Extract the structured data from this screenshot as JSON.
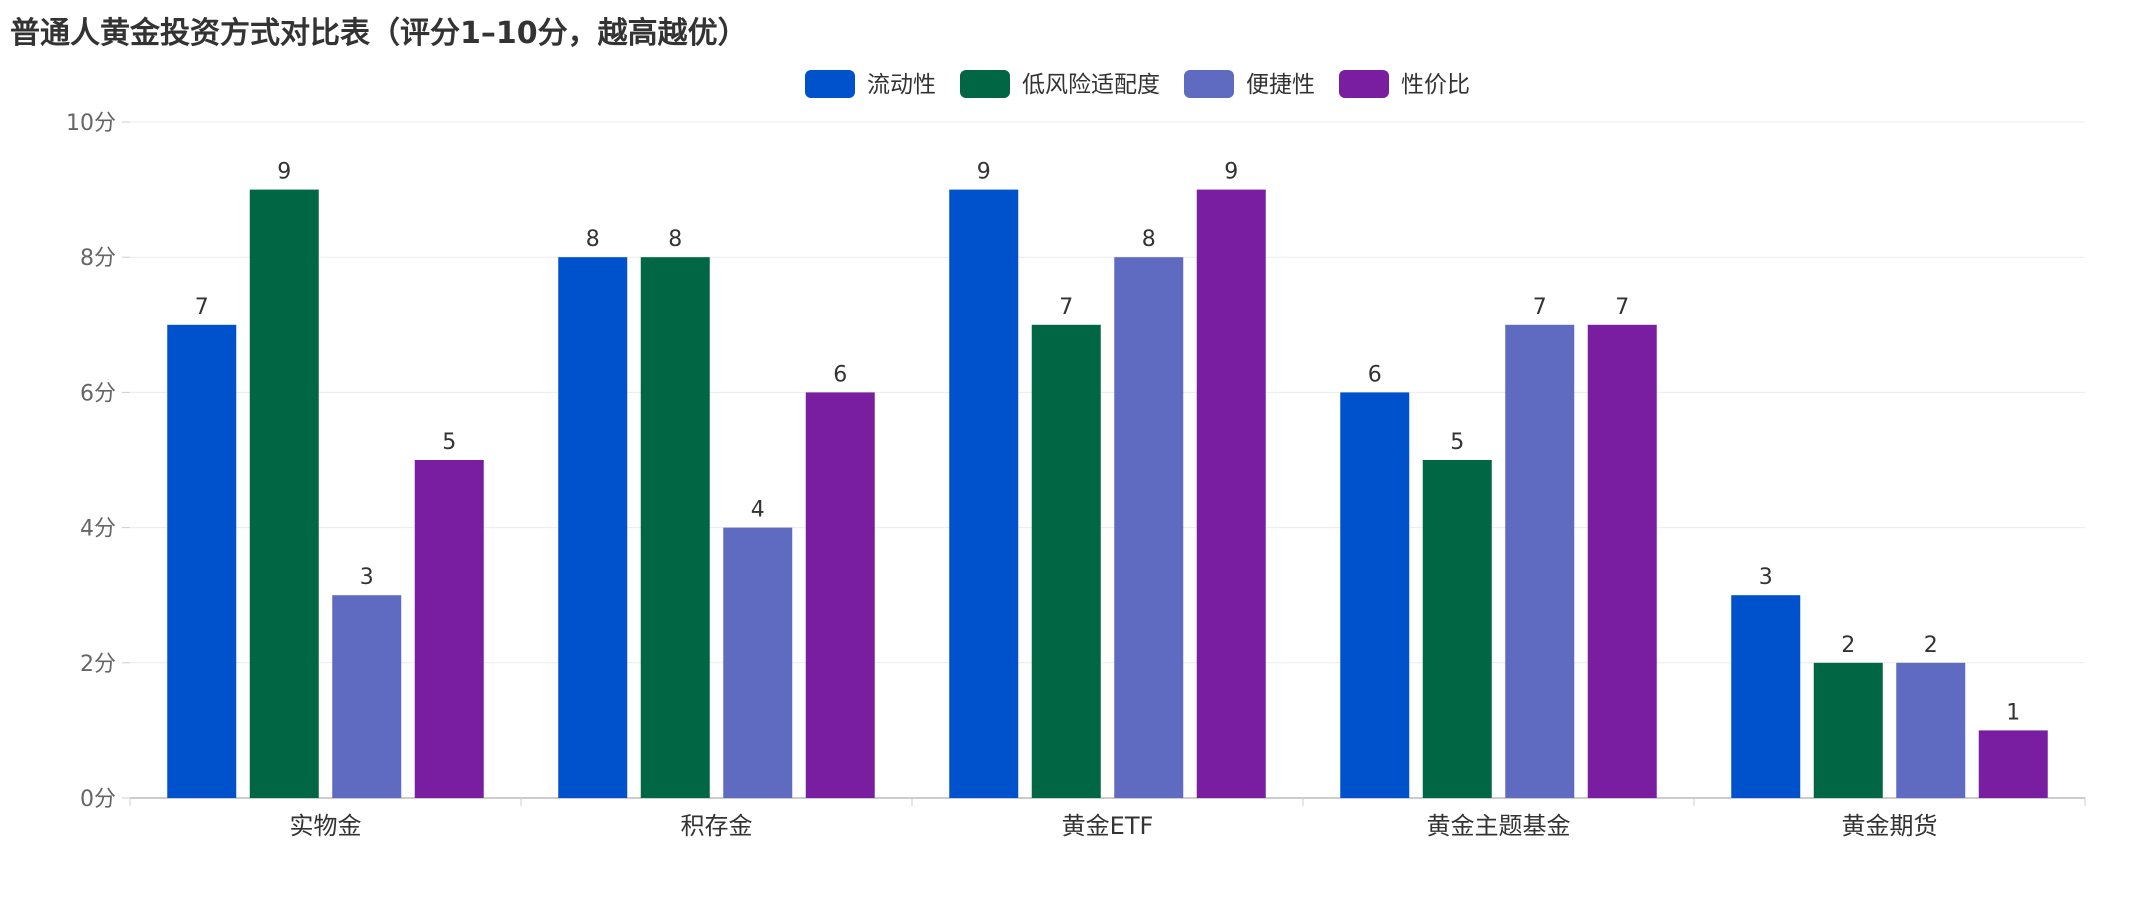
{
  "chart_data": {
    "type": "bar",
    "title": "普通人黄金投资方式对比表（评分1–10分，越高越优）",
    "categories": [
      "实物金",
      "积存金",
      "黄金ETF",
      "黄金主题基金",
      "黄金期货"
    ],
    "series": [
      {
        "name": "流动性",
        "values": [
          7,
          8,
          9,
          6,
          3
        ],
        "color": "#0052CC"
      },
      {
        "name": "低风险适配度",
        "values": [
          9,
          8,
          7,
          5,
          2
        ],
        "color": "#006644"
      },
      {
        "name": "便捷性",
        "values": [
          3,
          4,
          8,
          7,
          2
        ],
        "color": "#5E6BC0"
      },
      {
        "name": "性价比",
        "values": [
          5,
          6,
          9,
          7,
          1
        ],
        "color": "#7A1EA1"
      }
    ],
    "ylim": [
      0,
      10
    ],
    "yticks": [
      0,
      2,
      4,
      6,
      8,
      10
    ],
    "ytick_suffix": "分",
    "grid": true,
    "legend_position": "top-center",
    "data_labels": true
  }
}
